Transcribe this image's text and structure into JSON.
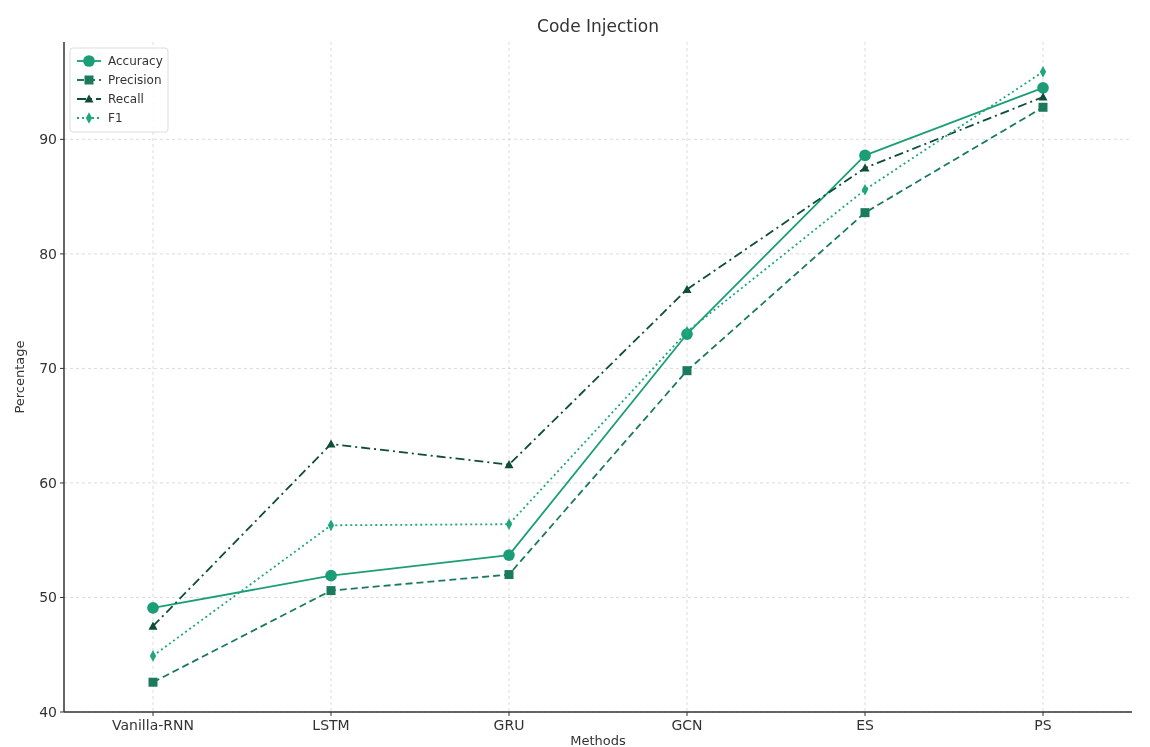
{
  "chart_data": {
    "type": "line",
    "title": "Code Injection",
    "xlabel": "Methods",
    "ylabel": "Percentage",
    "categories": [
      "Vanilla-RNN",
      "LSTM",
      "GRU",
      "GCN",
      "ES",
      "PS"
    ],
    "ylim": [
      40,
      98.5
    ],
    "yticks": [
      40,
      50,
      60,
      70,
      80,
      90
    ],
    "grid": true,
    "legend": "top left",
    "series": [
      {
        "name": "Accuracy",
        "color": "#1b9e77",
        "marker": "circle",
        "line_style": "solid",
        "values": [
          49.1,
          51.9,
          53.7,
          73.0,
          88.6,
          94.5
        ]
      },
      {
        "name": "Precision",
        "color": "#1b7a5e",
        "marker": "square",
        "line_style": "dashed",
        "values": [
          42.6,
          50.6,
          52.0,
          69.8,
          83.6,
          92.8
        ]
      },
      {
        "name": "Recall",
        "color": "#0e4d38",
        "marker": "triangle",
        "line_style": "dashdot",
        "values": [
          47.5,
          63.4,
          61.6,
          76.9,
          87.5,
          93.7
        ]
      },
      {
        "name": "F1",
        "color": "#1fa67c",
        "marker": "diamond",
        "line_style": "dotted",
        "values": [
          44.9,
          56.3,
          56.4,
          73.2,
          85.6,
          95.9
        ]
      }
    ]
  }
}
